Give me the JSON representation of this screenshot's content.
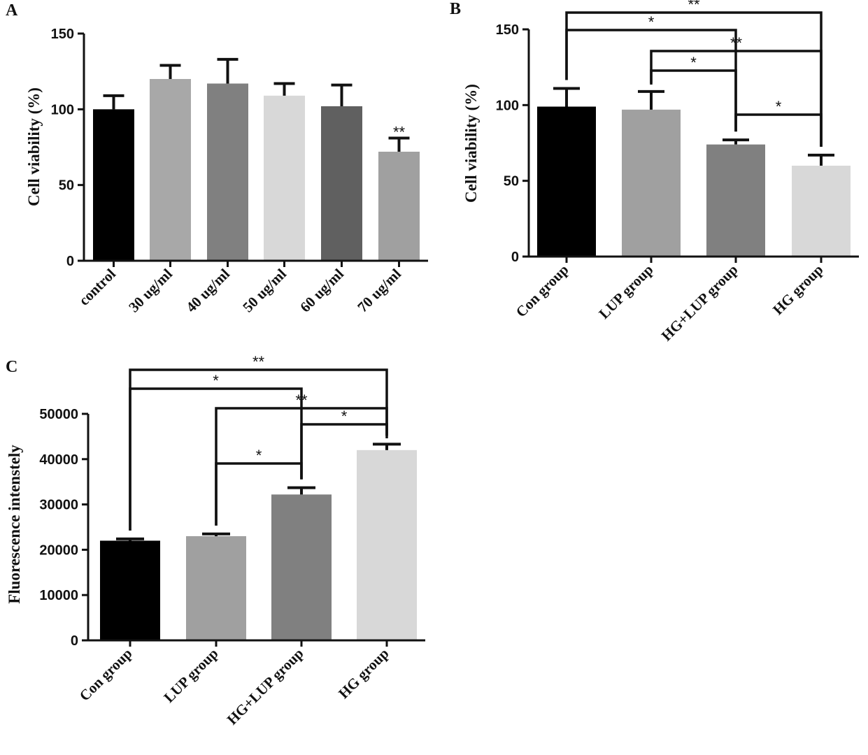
{
  "chart_data": [
    {
      "panel": "A",
      "type": "bar",
      "ylabel": "Cell viability (%)",
      "ylim": [
        0,
        150
      ],
      "yticks": [
        0,
        50,
        100,
        150
      ],
      "categories": [
        "control",
        "30 ug/ml",
        "40 ug/ml",
        "50 ug/ml",
        "60 ug/ml",
        "70 ug/ml"
      ],
      "values": [
        100,
        120,
        117,
        109,
        102,
        72
      ],
      "errors": [
        9,
        9,
        16,
        8,
        14,
        9
      ],
      "colors": [
        "#000000",
        "#a8a8a8",
        "#808080",
        "#d8d8d8",
        "#606060",
        "#a0a0a0"
      ],
      "annotations": [
        {
          "category": "70 ug/ml",
          "text": "**"
        }
      ],
      "legend": "none",
      "grid": false
    },
    {
      "panel": "B",
      "type": "bar",
      "ylabel": "Cell viability (%)",
      "ylim": [
        0,
        150
      ],
      "yticks": [
        0,
        50,
        100,
        150
      ],
      "categories": [
        "Con group",
        "LUP group",
        "HG+LUP group",
        "HG group"
      ],
      "values": [
        99,
        97,
        74,
        60
      ],
      "errors": [
        12,
        12,
        3,
        7
      ],
      "colors": [
        "#000000",
        "#a0a0a0",
        "#808080",
        "#d8d8d8"
      ],
      "significance": [
        {
          "from": 0,
          "to": 3,
          "text": "**"
        },
        {
          "from": 0,
          "to": 2,
          "text": "*"
        },
        {
          "from": 1,
          "to": 3,
          "text": "**"
        },
        {
          "from": 1,
          "to": 2,
          "text": "*"
        },
        {
          "from": 2,
          "to": 3,
          "text": "*"
        }
      ],
      "legend": "none",
      "grid": false
    },
    {
      "panel": "C",
      "type": "bar",
      "ylabel": "Fluorescence intenstely",
      "ylim": [
        0,
        50000
      ],
      "yticks": [
        0,
        10000,
        20000,
        30000,
        40000,
        50000
      ],
      "categories": [
        "Con group",
        "LUP group",
        "HG+LUP group",
        "HG group"
      ],
      "values": [
        22000,
        23000,
        32200,
        42000
      ],
      "errors": [
        400,
        500,
        1500,
        1300
      ],
      "colors": [
        "#000000",
        "#a0a0a0",
        "#808080",
        "#d8d8d8"
      ],
      "significance": [
        {
          "from": 0,
          "to": 3,
          "text": "**"
        },
        {
          "from": 0,
          "to": 2,
          "text": "*"
        },
        {
          "from": 1,
          "to": 3,
          "text": "**"
        },
        {
          "from": 2,
          "to": 3,
          "text": "*"
        },
        {
          "from": 1,
          "to": 2,
          "text": "*"
        }
      ],
      "legend": "none",
      "grid": false
    }
  ]
}
